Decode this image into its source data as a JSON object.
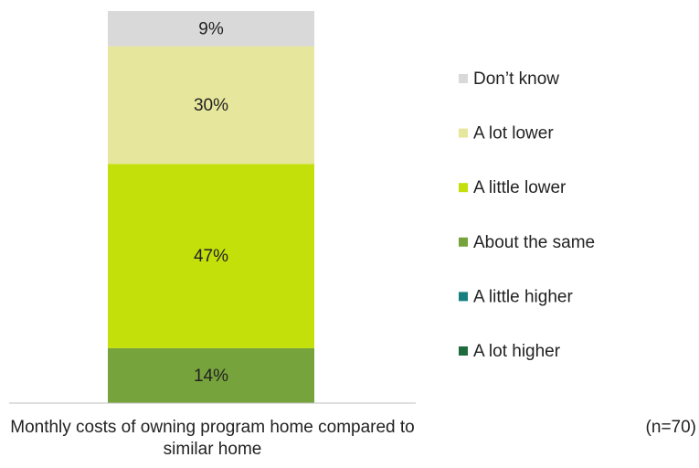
{
  "chart_data": {
    "type": "stacked_bar",
    "categories": [
      "Monthly costs of owning program home compared to similar home"
    ],
    "series": [
      {
        "name": "A lot higher",
        "color": "#1e6b3e",
        "values": [
          0
        ]
      },
      {
        "name": "A little higher",
        "color": "#17807f",
        "values": [
          0
        ]
      },
      {
        "name": "About the same",
        "color": "#77a33d",
        "values": [
          14
        ],
        "value_labels": [
          "14%"
        ]
      },
      {
        "name": "A little lower",
        "color": "#c3e00b",
        "values": [
          47
        ],
        "value_labels": [
          "47%"
        ]
      },
      {
        "name": "A lot lower",
        "color": "#e6e69c",
        "values": [
          30
        ],
        "value_labels": [
          "30%"
        ]
      },
      {
        "name": "Don’t know",
        "color": "#d9d9d9",
        "values": [
          9
        ],
        "value_labels": [
          "9%"
        ]
      }
    ],
    "ylim": [
      0,
      100
    ],
    "annotation": "(n=70)",
    "legend": "right"
  }
}
